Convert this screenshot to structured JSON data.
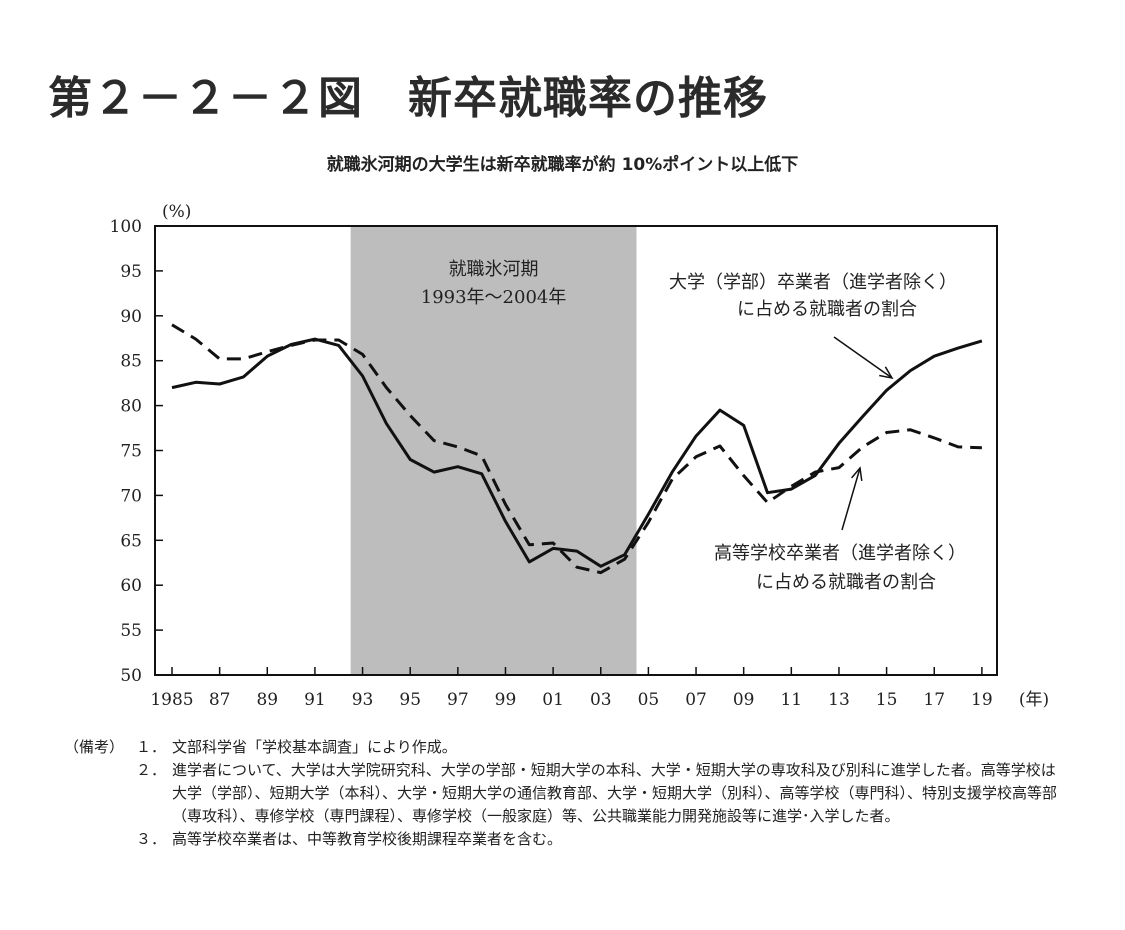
{
  "figure": {
    "title": "第２－２－２図　新卒就職率の推移",
    "subtitle": "就職氷河期の大学生は新卒就職率が約 10%ポイント以上低下"
  },
  "chart_data": {
    "type": "line",
    "ylabel": "(%)",
    "xlabel": "(年)",
    "ylim": [
      50,
      100
    ],
    "yticks": [
      100,
      95,
      90,
      85,
      80,
      75,
      70,
      65,
      60,
      55,
      50
    ],
    "xlim": [
      1985,
      2019
    ],
    "xticks": [
      {
        "year": 1985,
        "label": "1985"
      },
      {
        "year": 1987,
        "label": "87"
      },
      {
        "year": 1989,
        "label": "89"
      },
      {
        "year": 1991,
        "label": "91"
      },
      {
        "year": 1993,
        "label": "93"
      },
      {
        "year": 1995,
        "label": "95"
      },
      {
        "year": 1997,
        "label": "97"
      },
      {
        "year": 1999,
        "label": "99"
      },
      {
        "year": 2001,
        "label": "01"
      },
      {
        "year": 2003,
        "label": "03"
      },
      {
        "year": 2005,
        "label": "05"
      },
      {
        "year": 2007,
        "label": "07"
      },
      {
        "year": 2009,
        "label": "09"
      },
      {
        "year": 2011,
        "label": "11"
      },
      {
        "year": 2013,
        "label": "13"
      },
      {
        "year": 2015,
        "label": "15"
      },
      {
        "year": 2017,
        "label": "17"
      },
      {
        "year": 2019,
        "label": "19"
      }
    ],
    "shaded_period": {
      "from": 1992.5,
      "to": 2004.5,
      "label_line1": "就職氷河期",
      "label_line2": "1993年～2004年"
    },
    "x": [
      1985,
      1986,
      1987,
      1988,
      1989,
      1990,
      1991,
      1992,
      1993,
      1994,
      1995,
      1996,
      1997,
      1998,
      1999,
      2000,
      2001,
      2002,
      2003,
      2004,
      2005,
      2006,
      2007,
      2008,
      2009,
      2010,
      2011,
      2012,
      2013,
      2014,
      2015,
      2016,
      2017,
      2018,
      2019
    ],
    "series": [
      {
        "name": "大学（学部）卒業者（進学者除く）に占める就職者の割合",
        "style": "solid",
        "color": "#111111",
        "values": [
          82.0,
          82.6,
          82.4,
          83.2,
          85.5,
          86.8,
          87.4,
          86.7,
          83.3,
          78.0,
          74.0,
          72.6,
          73.2,
          72.4,
          67.1,
          62.6,
          64.1,
          63.8,
          62.1,
          63.4,
          67.9,
          72.6,
          76.6,
          79.5,
          77.8,
          70.3,
          70.7,
          72.2,
          75.8,
          78.8,
          81.7,
          83.9,
          85.5,
          86.4,
          87.2
        ]
      },
      {
        "name": "高等学校卒業者（進学者除く）に占める就職者の割合",
        "style": "dashed",
        "color": "#111111",
        "values": [
          89.0,
          87.4,
          85.2,
          85.2,
          86.0,
          86.7,
          87.3,
          87.3,
          85.7,
          82.0,
          78.9,
          76.1,
          75.4,
          74.4,
          69.0,
          64.5,
          64.7,
          62.0,
          61.4,
          62.9,
          67.0,
          71.8,
          74.3,
          75.5,
          72.2,
          69.2,
          71.0,
          72.6,
          73.1,
          75.4,
          77.0,
          77.3,
          76.4,
          75.4,
          75.3
        ]
      }
    ],
    "annotations": [
      {
        "series": 0,
        "line1": "大学（学部）卒業者（進学者除く）",
        "line2": "に占める就職者の割合"
      },
      {
        "series": 1,
        "line1": "高等学校卒業者（進学者除く）",
        "line2": "に占める就職者の割合"
      }
    ],
    "grid": false
  },
  "notes": {
    "head": "（備考）",
    "items": [
      {
        "num": "１．",
        "text": "文部科学省「学校基本調査」により作成。"
      },
      {
        "num": "２．",
        "text": "進学者について、大学は大学院研究科、大学の学部・短期大学の本科、大学・短期大学の専攻科及び別科に進学した者。高等学校は大学（学部）、短期大学（本科）、大学・短期大学の通信教育部、大学・短期大学（別科）、高等学校（専門科）、特別支援学校高等部（専攻科）、専修学校（専門課程）、専修学校（一般家庭）等、公共職業能力開発施設等に進学･入学した者。"
      },
      {
        "num": "３．",
        "text": "高等学校卒業者は、中等教育学校後期課程卒業者を含む。"
      }
    ]
  }
}
